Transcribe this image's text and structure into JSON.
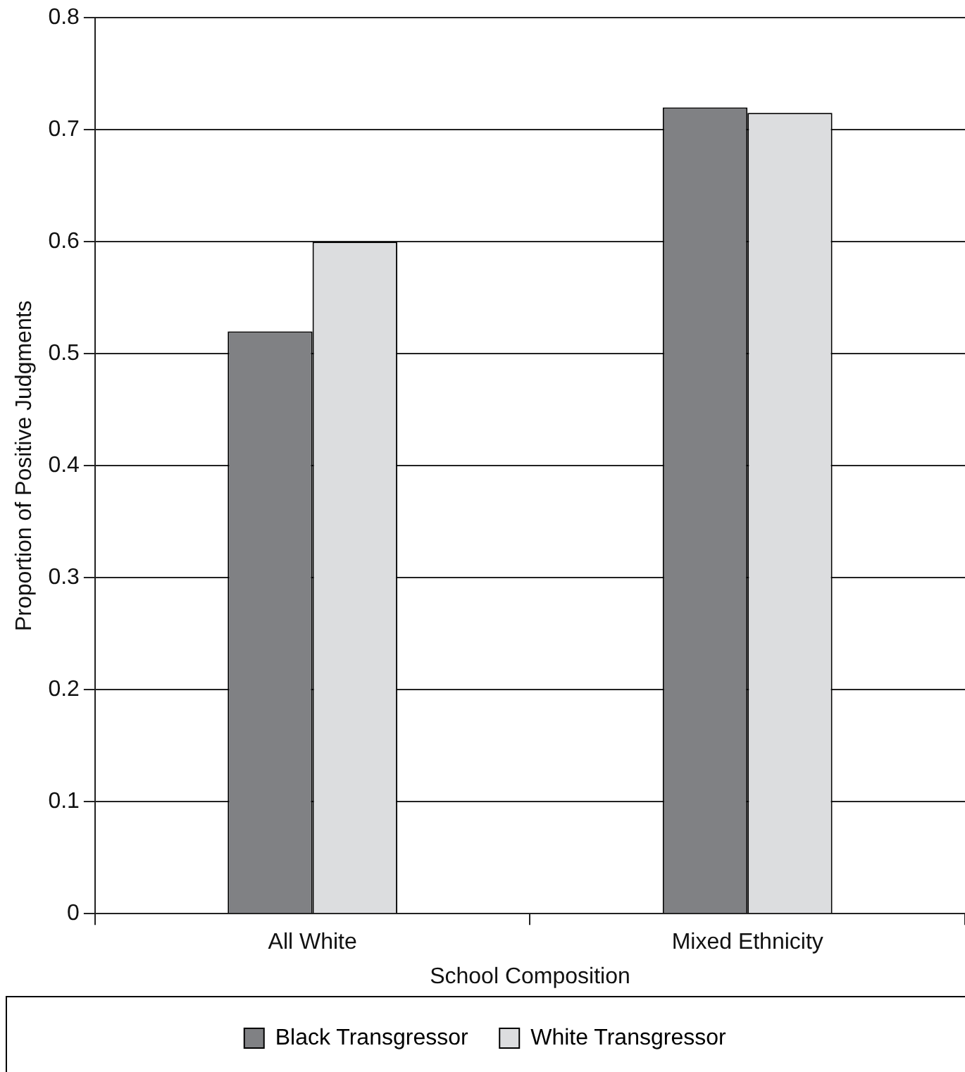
{
  "chart_data": {
    "type": "bar",
    "xlabel": "School Composition",
    "ylabel": "Proportion of Positive Judgments",
    "categories": [
      "All White",
      "Mixed Ethnicity"
    ],
    "series": [
      {
        "name": "Black Transgressor",
        "color": "#808184",
        "values": [
          0.52,
          0.72
        ]
      },
      {
        "name": "White Transgressor",
        "color": "#dcdddf",
        "values": [
          0.6,
          0.715
        ]
      }
    ],
    "ylim": [
      0,
      0.8
    ],
    "yticks": [
      0,
      0.1,
      0.2,
      0.3,
      0.4,
      0.5,
      0.6,
      0.7,
      0.8
    ],
    "grid": "y",
    "legend": "bottom"
  }
}
